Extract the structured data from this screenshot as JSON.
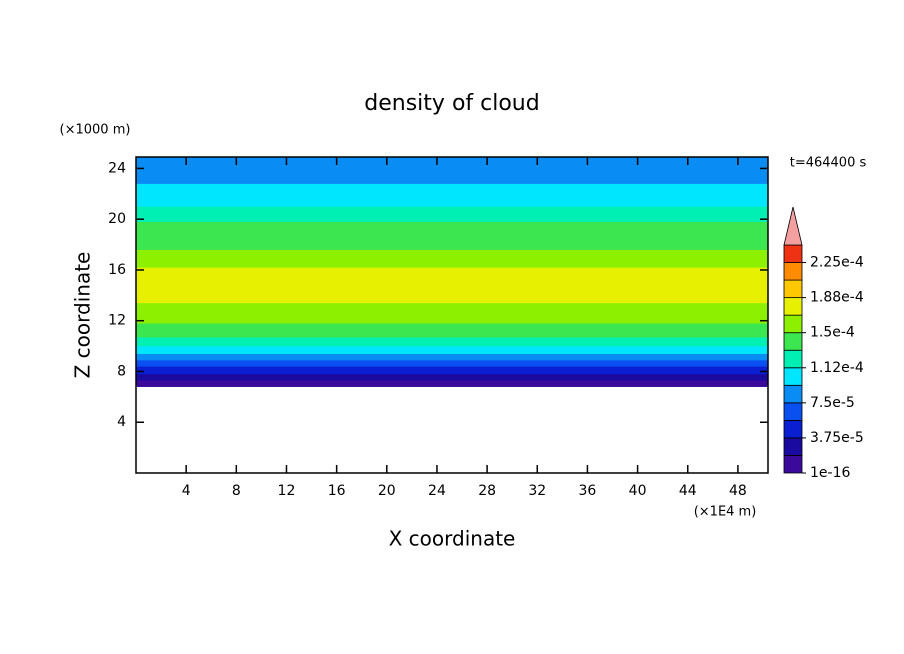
{
  "chart_data": {
    "type": "contour",
    "title": "density of cloud",
    "x_label": "X coordinate",
    "y_label": "Z coordinate",
    "x_unit": "(×1E4 m)",
    "y_unit": "(×1000 m)",
    "annotation": "t=464400 s",
    "xlim": [
      0,
      50.4
    ],
    "ylim": [
      0,
      24.9
    ],
    "xticks": [
      4,
      8,
      12,
      16,
      20,
      24,
      28,
      32,
      36,
      40,
      44,
      48
    ],
    "yticks": [
      4,
      8,
      12,
      16,
      20,
      24
    ],
    "field": {
      "z_edges": [
        6.8,
        7.3,
        7.8,
        8.4,
        8.9,
        9.4,
        10.0,
        10.7,
        11.8,
        13.4,
        16.2,
        17.6,
        19.8,
        21.0,
        22.8,
        24.9
      ],
      "values": [
        9.375e-06,
        2.8125e-05,
        4.6875e-05,
        6.5625e-05,
        8.4375e-05,
        0.000103125,
        0.000121875,
        0.000140625,
        0.000159375,
        0.000178125,
        0.000159375,
        0.000140625,
        0.000121875,
        0.000103125,
        8.4375e-05
      ]
    },
    "colorbar": {
      "lim": [
        1e-16,
        0.00024375
      ],
      "colors": [
        "#3c0a9a",
        "#1a0aa0",
        "#0a1ed2",
        "#0a50f0",
        "#0a8cf5",
        "#00e6ff",
        "#00f0b4",
        "#3ce650",
        "#8cf000",
        "#e6f000",
        "#ffc800",
        "#ff8c00",
        "#f03214"
      ],
      "extend_color": "#f4a0a0",
      "ticks": [
        {
          "value": 1e-16,
          "label": "1e-16"
        },
        {
          "value": 3.75e-05,
          "label": "3.75e-5"
        },
        {
          "value": 7.5e-05,
          "label": "7.5e-5"
        },
        {
          "value": 0.0001125,
          "label": "1.12e-4"
        },
        {
          "value": 0.00015,
          "label": "1.5e-4"
        },
        {
          "value": 0.0001875,
          "label": "1.88e-4"
        },
        {
          "value": 0.000225,
          "label": "2.25e-4"
        }
      ]
    }
  }
}
